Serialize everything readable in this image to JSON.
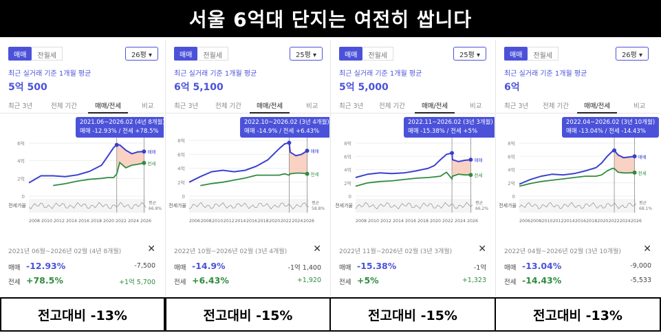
{
  "title": "서울 6억대 단지는 여전히 쌉니다",
  "panels": [
    {
      "toggle_buy": "매매",
      "toggle_rent": "전월세",
      "area": "26평 ▾",
      "subtitle": "최근 실거래 기준 1개월 평균",
      "price": "5억 500",
      "tabs": [
        "최근 3년",
        "전체 기간",
        "매매/전세",
        "비교"
      ],
      "callout_line1": "2021.06~2026.02 (4년 8개월)",
      "callout_line2": "매매 -12.93% / 전세 +78.5%",
      "yticks": [
        "6억",
        "4억",
        "2억",
        "0"
      ],
      "xticks": [
        "2008",
        "2010",
        "2012",
        "2014",
        "2016",
        "2018",
        "2020",
        "2022",
        "2024",
        "2026"
      ],
      "legend_buy": "매매",
      "legend_rent": "전세",
      "ratio_label": "전세가율",
      "avg_label": "평균",
      "avg_value": "66.8%",
      "summary_range": "2021년 06월~2026년 02월 (4년 8개월)",
      "buy_label": "매매",
      "buy_pct": "-12.93%",
      "buy_amt": "-7,500",
      "rent_label": "전세",
      "rent_pct": "+78.5%",
      "rent_amt": "+1억 5,700",
      "footer": "전고대비 -13%"
    },
    {
      "toggle_buy": "매매",
      "toggle_rent": "전월세",
      "area": "25평 ▾",
      "subtitle": "최근 실거래 기준 1개월 평균",
      "price": "6억 5,100",
      "tabs": [
        "최근 3년",
        "전체 기간",
        "매매/전세",
        "비교"
      ],
      "callout_line1": "2022.10~2026.02 (3년 4개월)",
      "callout_line2": "매매 -14.9% / 전세 +6.43%",
      "yticks": [
        "8억",
        "6억",
        "4억",
        "2억",
        "0"
      ],
      "xticks": [
        "2006",
        "2008",
        "2010",
        "2012",
        "2014",
        "2016",
        "2018",
        "2020",
        "2022",
        "2024",
        "2026"
      ],
      "legend_buy": "매매",
      "legend_rent": "전세",
      "ratio_label": "전세가율",
      "avg_label": "평균",
      "avg_value": "58.8%",
      "summary_range": "2022년 10월~2026년 02월 (3년 4개월)",
      "buy_label": "매매",
      "buy_pct": "-14.9%",
      "buy_amt": "-1억 1,400",
      "rent_label": "전세",
      "rent_pct": "+6.43%",
      "rent_amt": "+1,920",
      "footer": "전고대비 -15%"
    },
    {
      "toggle_buy": "매매",
      "toggle_rent": "전월세",
      "area": "25평 ▾",
      "subtitle": "최근 실거래 기준 1개월 평균",
      "price": "5억 5,000",
      "tabs": [
        "최근 3년",
        "전체 기간",
        "매매/전세",
        "비교"
      ],
      "callout_line1": "2022.11~2026.02 (3년 3개월)",
      "callout_line2": "매매 -15.38% / 전세 +5%",
      "yticks": [
        "8억",
        "6억",
        "4억",
        "2억",
        "0"
      ],
      "xticks": [
        "2008",
        "2010",
        "2012",
        "2014",
        "2016",
        "2018",
        "2020",
        "2022",
        "2024",
        "2026"
      ],
      "legend_buy": "매매",
      "legend_rent": "전세",
      "ratio_label": "전세가율",
      "avg_label": "평균",
      "avg_value": "66.2%",
      "summary_range": "2022년 11월~2026년 02월 (3년 3개월)",
      "buy_label": "매매",
      "buy_pct": "-15.38%",
      "buy_amt": "-1억",
      "rent_label": "전세",
      "rent_pct": "+5%",
      "rent_amt": "+1,323",
      "footer": "전고대비 -15%"
    },
    {
      "toggle_buy": "매매",
      "toggle_rent": "전월세",
      "area": "26평 ▾",
      "subtitle": "최근 실거래 기준 1개월 평균",
      "price": "6억",
      "tabs": [
        "최근 3년",
        "전체 기간",
        "매매/전세",
        "비교"
      ],
      "callout_line1": "2022.04~2026.02 (3년 10개월)",
      "callout_line2": "매매 -13.04% / 전세 -14.43%",
      "yticks": [
        "8억",
        "6억",
        "4억",
        "2억",
        "0"
      ],
      "xticks": [
        "2006",
        "2008",
        "2010",
        "2012",
        "2014",
        "2016",
        "2018",
        "2020",
        "2022",
        "2024",
        "2026"
      ],
      "legend_buy": "매매",
      "legend_rent": "전세",
      "ratio_label": "전세가율",
      "avg_label": "평균",
      "avg_value": "68.1%",
      "summary_range": "2022년 04월~2026년 02월 (3년 10개월)",
      "buy_label": "매매",
      "buy_pct": "-13.04%",
      "buy_amt": "-9,000",
      "rent_label": "전세",
      "rent_pct": "-14.43%",
      "rent_amt": "-5,533",
      "footer": "전고대비 -13%"
    }
  ],
  "chart_data": [
    {
      "type": "line",
      "ylim": [
        0,
        6
      ],
      "x": [
        2007,
        2009,
        2011,
        2013,
        2015,
        2017,
        2019,
        2020,
        2021,
        2021.5,
        2022,
        2023,
        2024,
        2025,
        2026
      ],
      "series": [
        {
          "name": "매매",
          "values": [
            1.5,
            2.3,
            2.3,
            2.2,
            2.4,
            2.8,
            3.5,
            4.5,
            5.5,
            5.8,
            5.8,
            5.2,
            4.8,
            5.0,
            5.05
          ]
        },
        {
          "name": "전세",
          "values": [
            null,
            null,
            1.2,
            1.4,
            1.7,
            1.9,
            2.0,
            2.1,
            2.1,
            2.5,
            3.8,
            3.2,
            3.5,
            3.6,
            3.75
          ]
        }
      ]
    },
    {
      "type": "line",
      "ylim": [
        0,
        8
      ],
      "x": [
        2005,
        2007,
        2009,
        2011,
        2013,
        2015,
        2017,
        2019,
        2020,
        2021,
        2022,
        2022.8,
        2023,
        2024,
        2025,
        2026
      ],
      "series": [
        {
          "name": "매매",
          "values": [
            2.0,
            2.8,
            3.5,
            3.7,
            3.5,
            3.7,
            4.3,
            5.2,
            6.0,
            6.8,
            7.5,
            7.65,
            6.3,
            5.8,
            6.0,
            6.51
          ]
        },
        {
          "name": "전세",
          "values": [
            null,
            1.5,
            1.8,
            2.0,
            2.3,
            2.6,
            3.0,
            3.0,
            3.0,
            3.0,
            3.2,
            3.0,
            3.2,
            3.3,
            3.3,
            3.2
          ]
        }
      ]
    },
    {
      "type": "line",
      "ylim": [
        0,
        8
      ],
      "x": [
        2007,
        2009,
        2011,
        2013,
        2015,
        2017,
        2019,
        2020,
        2021,
        2022,
        2022.9,
        2023,
        2024,
        2025,
        2026
      ],
      "series": [
        {
          "name": "매매",
          "values": [
            2.8,
            3.3,
            3.5,
            3.4,
            3.5,
            3.8,
            4.2,
            4.6,
            5.5,
            6.3,
            6.5,
            5.5,
            5.2,
            5.4,
            5.5
          ]
        },
        {
          "name": "전세",
          "values": [
            1.5,
            2.0,
            2.2,
            2.3,
            2.5,
            2.7,
            2.8,
            2.9,
            3.0,
            3.6,
            2.6,
            3.0,
            3.3,
            3.2,
            3.2
          ]
        }
      ]
    },
    {
      "type": "line",
      "ylim": [
        0,
        8
      ],
      "x": [
        2005,
        2007,
        2009,
        2011,
        2013,
        2015,
        2017,
        2019,
        2020,
        2021,
        2022,
        2022.3,
        2023,
        2024,
        2025,
        2026
      ],
      "series": [
        {
          "name": "매매",
          "values": [
            1.8,
            2.5,
            3.0,
            3.3,
            3.2,
            3.4,
            3.8,
            4.3,
            5.0,
            6.0,
            6.8,
            6.9,
            6.2,
            5.8,
            5.9,
            6.0
          ]
        },
        {
          "name": "전세",
          "values": [
            1.5,
            1.9,
            2.2,
            2.4,
            2.6,
            2.8,
            3.0,
            3.0,
            3.2,
            3.8,
            4.2,
            4.15,
            3.6,
            3.5,
            3.5,
            3.55
          ]
        }
      ]
    }
  ]
}
